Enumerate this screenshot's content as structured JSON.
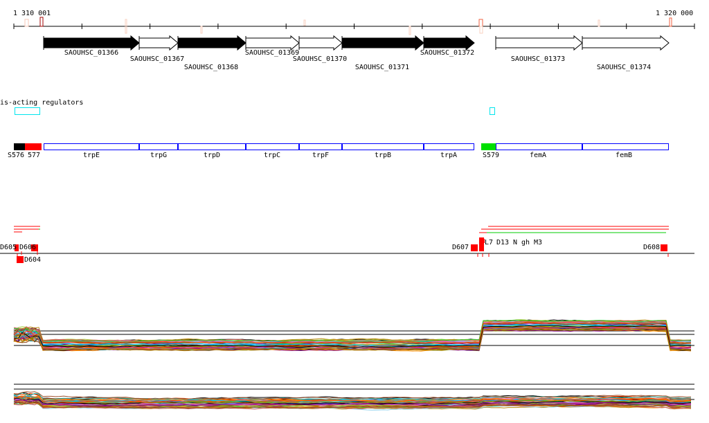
{
  "ruler": {
    "start_label": "1 310 001",
    "end_label": "1 320 000"
  },
  "genes": [
    {
      "name": "SAOUHSC_01366",
      "filled": true
    },
    {
      "name": "SAOUHSC_01367",
      "filled": false
    },
    {
      "name": "SAOUHSC_01368",
      "filled": true
    },
    {
      "name": "SAOUHSC_01369",
      "filled": false
    },
    {
      "name": "SAOUHSC_01370",
      "filled": false
    },
    {
      "name": "SAOUHSC_01371",
      "filled": true
    },
    {
      "name": "SAOUHSC_01372",
      "filled": true
    },
    {
      "name": "SAOUHSC_01373",
      "filled": false
    },
    {
      "name": "SAOUHSC_01374",
      "filled": false
    }
  ],
  "regulators": {
    "label": "is-acting regulators",
    "color": "#00e5ee"
  },
  "operon": {
    "segments": [
      {
        "name": "S576",
        "color": "#000000"
      },
      {
        "name": "577",
        "color": "#ff0000"
      },
      {
        "name": "trpE"
      },
      {
        "name": "trpG"
      },
      {
        "name": "trpD"
      },
      {
        "name": "trpC"
      },
      {
        "name": "trpF"
      },
      {
        "name": "trpB"
      },
      {
        "name": "trpA"
      },
      {
        "name": "S579",
        "color": "#00e000"
      },
      {
        "name": "femA"
      },
      {
        "name": "femB"
      }
    ],
    "border_color": "#0000ff"
  },
  "features": {
    "labels": [
      "D605",
      "D606",
      "D604",
      "D607",
      "D608",
      "L7",
      "D13",
      "N",
      "gh",
      "M3"
    ],
    "color": "#ff0000"
  }
}
